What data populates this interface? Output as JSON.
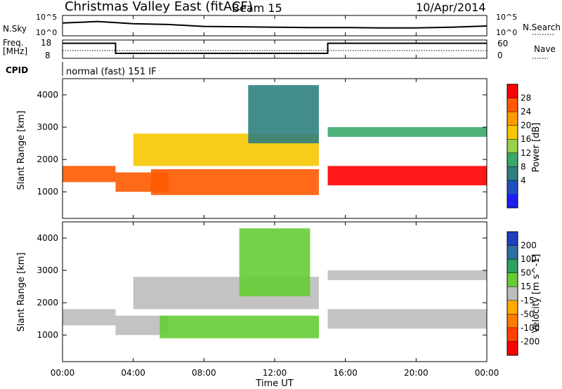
{
  "header": {
    "station": "Christmas Valley East (fitACF)",
    "beam": "Beam 15",
    "date": "10/Apr/2014"
  },
  "status_panels": {
    "nsky_label": "N.Sky",
    "nsky_tick_high": "10^5",
    "nsky_tick_low": "10^0",
    "nsearch_label": "N.Search",
    "nsearch_tick_high": "10^5",
    "nsearch_tick_low": "10^0",
    "freq_label_line1": "Freq.",
    "freq_label_line2": "[MHz]",
    "freq_tick_high": "18",
    "freq_tick_low": "8",
    "nave_label": "Nave",
    "nave_tick_high": "60",
    "nave_tick_low": "0",
    "cpid_label": "CPID",
    "cpid_value": "normal (fast) 151 IF"
  },
  "axes": {
    "ylabel": "Slant Range [km]",
    "xlabel": "Time UT",
    "y_ticks": [
      "4000",
      "3000",
      "2000",
      "1000"
    ],
    "x_ticks": [
      "00:00",
      "04:00",
      "08:00",
      "12:00",
      "16:00",
      "20:00",
      "00:00"
    ]
  },
  "power_bar": {
    "label": "Power [dB]",
    "ticks": [
      "28",
      "24",
      "20",
      "16",
      "12",
      "8",
      "4"
    ],
    "colors": [
      "#ff0000",
      "#ff5a00",
      "#ff9a00",
      "#f7c800",
      "#9ad04a",
      "#3aa86a",
      "#2f7f7f",
      "#1f4fbf",
      "#1e1ef0"
    ]
  },
  "velocity_bar": {
    "label": "Velocity [m s^-1]",
    "ticks": [
      "200",
      "100",
      "50",
      "15",
      "-15",
      "-50",
      "-100",
      "-200"
    ],
    "colors": [
      "#1e3fbf",
      "#2f6fa0",
      "#2fa060",
      "#66cc33",
      "#bdbdbd",
      "#ffaa00",
      "#ff7a00",
      "#ff4000",
      "#ff0000"
    ]
  },
  "chart_data": [
    {
      "type": "line",
      "name": "N.Sky / N.Search",
      "x": [
        0,
        2,
        4,
        6,
        8,
        10,
        12,
        14,
        16,
        18,
        20,
        22,
        24
      ],
      "y_log": [
        3.2,
        3.6,
        3.0,
        2.8,
        2.3,
        2.2,
        2.1,
        2.0,
        2.0,
        1.9,
        1.9,
        2.1,
        2.4
      ],
      "xlim": [
        0,
        24
      ],
      "ylim_log": [
        0,
        5
      ]
    },
    {
      "type": "line",
      "name": "Freq. / Nave",
      "series": [
        {
          "name": "Freq.",
          "x": [
            0,
            3,
            3,
            15,
            15,
            24
          ],
          "values": [
            16.5,
            16.5,
            10.5,
            10.5,
            16.5,
            16.5
          ]
        },
        {
          "name": "Nave",
          "x": [
            0,
            24
          ],
          "values": [
            25,
            25
          ]
        }
      ],
      "xlim": [
        0,
        24
      ],
      "ylim_freq": [
        8,
        18
      ],
      "ylim_nave": [
        0,
        60
      ]
    },
    {
      "type": "heatmap",
      "name": "Power [dB]",
      "xlim": [
        0,
        24
      ],
      "ylim": [
        200,
        4500
      ],
      "features": [
        {
          "x": [
            0,
            3
          ],
          "range": [
            1300,
            1800
          ],
          "power": 26
        },
        {
          "x": [
            3,
            6
          ],
          "range": [
            1000,
            1600
          ],
          "power": 24
        },
        {
          "x": [
            5,
            14.5
          ],
          "range": [
            900,
            1700
          ],
          "power": 24
        },
        {
          "x": [
            4,
            14.5
          ],
          "range": [
            1800,
            2800
          ],
          "power": 18
        },
        {
          "x": [
            15,
            24
          ],
          "range": [
            1200,
            1800
          ],
          "power": 28
        },
        {
          "x": [
            15,
            24
          ],
          "range": [
            2700,
            3000
          ],
          "power": 12
        },
        {
          "x": [
            10.5,
            14.5
          ],
          "range": [
            2500,
            4300
          ],
          "power": 8
        }
      ]
    },
    {
      "type": "heatmap",
      "name": "Velocity",
      "xlim": [
        0,
        24
      ],
      "ylim": [
        200,
        4500
      ],
      "features": [
        {
          "x": [
            0,
            3
          ],
          "range": [
            1300,
            1800
          ],
          "velocity": 0
        },
        {
          "x": [
            3,
            6
          ],
          "range": [
            1000,
            1600
          ],
          "velocity": 0
        },
        {
          "x": [
            5.5,
            14.5
          ],
          "range": [
            900,
            1600
          ],
          "velocity": 40
        },
        {
          "x": [
            4,
            14.5
          ],
          "range": [
            1800,
            2800
          ],
          "velocity": 0
        },
        {
          "x": [
            15,
            24
          ],
          "range": [
            1200,
            1800
          ],
          "velocity": 0
        },
        {
          "x": [
            15,
            24
          ],
          "range": [
            2700,
            3000
          ],
          "velocity": 0
        },
        {
          "x": [
            10,
            14
          ],
          "range": [
            2200,
            4300
          ],
          "velocity": 40
        }
      ]
    }
  ]
}
